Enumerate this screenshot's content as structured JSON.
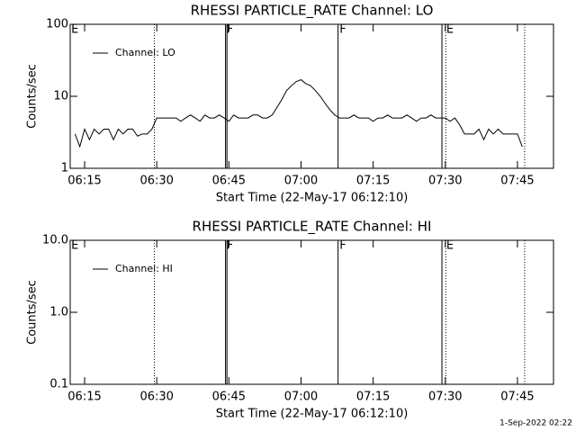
{
  "charts": [
    {
      "chart_data": {
        "type": "line",
        "title": "RHESSI PARTICLE_RATE Channel: LO",
        "xlabel": "Start Time (22-May-17 06:12:10)",
        "ylabel": "Counts/sec",
        "x": [
          373,
          374,
          375,
          376,
          377,
          378,
          379,
          380,
          381,
          382,
          383,
          384,
          385,
          386,
          387,
          388,
          389,
          390,
          391,
          392,
          393,
          394,
          395,
          396,
          397,
          398,
          399,
          400,
          401,
          402,
          403,
          404,
          405,
          406,
          407,
          408,
          409,
          410,
          411,
          412,
          413,
          414,
          415,
          416,
          417,
          418,
          419,
          420,
          421,
          422,
          423,
          424,
          425,
          426,
          427,
          428,
          429,
          430,
          431,
          432,
          433,
          434,
          435,
          436,
          437,
          438,
          439,
          440,
          441,
          442,
          443,
          444,
          445,
          446,
          447,
          448,
          449,
          450,
          451,
          452,
          453,
          454,
          455,
          456,
          457,
          458,
          459,
          460,
          461,
          462,
          463,
          464,
          465,
          466
        ],
        "series": [
          {
            "name": "Channel: LO",
            "color": "#000000",
            "values": [
              3,
              2,
              3.5,
              2.5,
              3.5,
              3,
              3.5,
              3.5,
              2.5,
              3.5,
              3,
              3.5,
              3.5,
              2.8,
              3,
              3,
              3.5,
              5,
              5,
              5,
              5,
              5,
              4.5,
              5,
              5.5,
              5,
              4.5,
              5.5,
              5,
              5,
              5.5,
              5,
              4.5,
              5.5,
              5,
              5,
              5,
              5.5,
              5.5,
              5,
              5,
              5.5,
              7,
              9,
              12,
              14,
              16,
              17,
              15,
              14,
              12,
              10,
              8,
              6.5,
              5.5,
              5,
              5,
              5,
              5.5,
              5,
              5,
              5,
              4.5,
              5,
              5,
              5.5,
              5,
              5,
              5,
              5.5,
              5,
              4.5,
              5,
              5,
              5.5,
              5,
              5,
              5,
              4.5,
              5,
              4,
              3,
              3,
              3,
              3.5,
              2.5,
              3.5,
              3,
              3.5,
              3,
              3,
              3,
              3,
              2
            ]
          }
        ],
        "xlim": [
          372,
          472.5
        ],
        "xticks": [
          {
            "value": 375,
            "label": "06:15"
          },
          {
            "value": 390,
            "label": "06:30"
          },
          {
            "value": 405,
            "label": "06:45"
          },
          {
            "value": 420,
            "label": "07:00"
          },
          {
            "value": 435,
            "label": "07:15"
          },
          {
            "value": 450,
            "label": "07:30"
          },
          {
            "value": 465,
            "label": "07:45"
          }
        ],
        "ylim": [
          1,
          100
        ],
        "yticks": [
          1,
          10,
          100
        ],
        "log_y": true,
        "legend": "upper left",
        "vlines": [
          {
            "x": 389.5,
            "style": "dotted"
          },
          {
            "x": 404.3,
            "style": "solid"
          },
          {
            "x": 404.6,
            "style": "solid"
          },
          {
            "x": 427.7,
            "style": "solid"
          },
          {
            "x": 449.3,
            "style": "solid"
          },
          {
            "x": 450.1,
            "style": "dotted"
          },
          {
            "x": 466.5,
            "style": "dotted"
          }
        ],
        "annotations": [
          {
            "x": 372.2,
            "text": "E"
          },
          {
            "x": 404.5,
            "text": "F"
          },
          {
            "x": 428,
            "text": "F"
          },
          {
            "x": 450.2,
            "text": "E"
          }
        ]
      }
    },
    {
      "chart_data": {
        "type": "line",
        "title": "RHESSI PARTICLE_RATE Channel: HI",
        "xlabel": "Start Time (22-May-17 06:12:10)",
        "ylabel": "Counts/sec",
        "x": [],
        "series": [
          {
            "name": "Channel: HI",
            "color": "#000000",
            "values": []
          }
        ],
        "xlim": [
          372,
          472.5
        ],
        "xticks": [
          {
            "value": 375,
            "label": "06:15"
          },
          {
            "value": 390,
            "label": "06:30"
          },
          {
            "value": 405,
            "label": "06:45"
          },
          {
            "value": 420,
            "label": "07:00"
          },
          {
            "value": 435,
            "label": "07:15"
          },
          {
            "value": 450,
            "label": "07:30"
          },
          {
            "value": 465,
            "label": "07:45"
          }
        ],
        "ylim": [
          0.1,
          10
        ],
        "yticks": [
          0.1,
          {
            "value": 1,
            "label": "1.0"
          },
          {
            "value": 10,
            "label": "10.0"
          }
        ],
        "log_y": true,
        "legend": "upper left",
        "vlines": [
          {
            "x": 389.5,
            "style": "dotted"
          },
          {
            "x": 404.3,
            "style": "solid"
          },
          {
            "x": 404.6,
            "style": "solid"
          },
          {
            "x": 427.7,
            "style": "solid"
          },
          {
            "x": 449.3,
            "style": "solid"
          },
          {
            "x": 450.1,
            "style": "dotted"
          },
          {
            "x": 466.5,
            "style": "dotted"
          }
        ],
        "annotations": [
          {
            "x": 372.2,
            "text": "E"
          },
          {
            "x": 404.5,
            "text": "F"
          },
          {
            "x": 428,
            "text": "F"
          },
          {
            "x": 450.2,
            "text": "E"
          }
        ]
      }
    }
  ],
  "footer": "1-Sep-2022 02:22"
}
